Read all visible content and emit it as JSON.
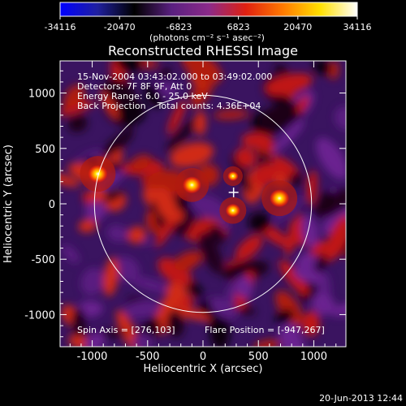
{
  "chart_data": {
    "type": "heatmap",
    "title": "Reconstructed RHESSI Image",
    "xlabel": "Heliocentric X (arcsec)",
    "ylabel": "Heliocentric Y (arcsec)",
    "xlim": [
      -1290,
      1290
    ],
    "ylim": [
      -1290,
      1290
    ],
    "x_ticks": [
      -1000,
      -500,
      0,
      500,
      1000
    ],
    "y_ticks": [
      -1000,
      -500,
      0,
      500,
      1000
    ],
    "colorbar": {
      "range": [
        -34116,
        34116
      ],
      "tick_values": [
        -34116,
        -20470,
        -6823,
        6823,
        20470,
        34116
      ],
      "tick_labels": [
        "-34116",
        "-20470",
        "-6823",
        "6823",
        "20470",
        "34116"
      ],
      "unit_label": "(photons cm⁻² s⁻¹ asec⁻²)",
      "colors": [
        "#0000ff",
        "#2020a0",
        "#000000",
        "#5a2080",
        "#8b2a8a",
        "#e02010",
        "#ff7a00",
        "#ffe000",
        "#ffffff"
      ]
    },
    "info_lines": [
      "15-Nov-2004 03:43:02.000 to 03:49:02.000",
      "Detectors: 7F 8F 9F, Att 0",
      "Energy Range: 6.0 - 25.0 keV",
      "Back Projection    Total counts: 4.36E+04"
    ],
    "spin_axis": "Spin Axis = [276,103]",
    "flare_position": "Flare Position = [-947,267]",
    "solar_limb_radius": 980,
    "spin_axis_marker": [
      276,
      103
    ],
    "sources": [
      {
        "x": -950,
        "y": 270,
        "intensity": 1.0
      },
      {
        "x": -100,
        "y": 170,
        "intensity": 0.95
      },
      {
        "x": 690,
        "y": 50,
        "intensity": 1.0
      },
      {
        "x": 270,
        "y": -60,
        "intensity": 0.75
      },
      {
        "x": 270,
        "y": 250,
        "intensity": 0.55
      }
    ]
  },
  "timestamp": "20-Jun-2013 12:44"
}
